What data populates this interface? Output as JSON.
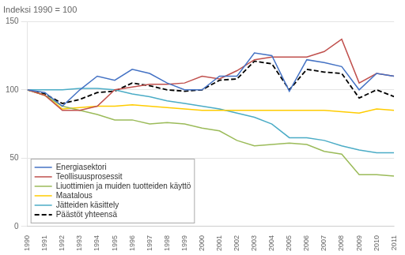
{
  "chart_data": {
    "type": "line",
    "ylabel": "Indeksi 1990 = 100",
    "x": [
      1990,
      1991,
      1992,
      1993,
      1994,
      1995,
      1996,
      1997,
      1998,
      1999,
      2000,
      2001,
      2002,
      2003,
      2004,
      2005,
      2006,
      2007,
      2008,
      2009,
      2010,
      2011
    ],
    "series": [
      {
        "name": "Energiasektori",
        "color": "#4472C4",
        "line_style": "solid",
        "values": [
          100,
          98,
          88,
          100,
          110,
          107,
          115,
          112,
          105,
          100,
          100,
          110,
          110,
          127,
          125,
          99,
          122,
          120,
          117,
          100,
          112,
          110
        ]
      },
      {
        "name": "Teollisuusprosessit",
        "color": "#C0504D",
        "line_style": "solid",
        "values": [
          100,
          96,
          85,
          85,
          88,
          100,
          102,
          104,
          104,
          105,
          110,
          108,
          114,
          122,
          124,
          124,
          124,
          128,
          137,
          105,
          112,
          110
        ]
      },
      {
        "name": "Liuottimien ja muiden tuotteiden käyttö",
        "color": "#9BBB59",
        "line_style": "solid",
        "values": [
          100,
          96,
          88,
          85,
          82,
          78,
          78,
          75,
          76,
          75,
          72,
          70,
          63,
          59,
          60,
          61,
          60,
          55,
          53,
          38,
          38,
          37
        ]
      },
      {
        "name": "Maatalous",
        "color": "#FFCC00",
        "line_style": "solid",
        "values": [
          100,
          96,
          86,
          87,
          88,
          88,
          89,
          88,
          87,
          86,
          85,
          85,
          85,
          85,
          85,
          85,
          85,
          85,
          84,
          83,
          86,
          85
        ]
      },
      {
        "name": "Jätteiden käsittely",
        "color": "#4BACC6",
        "line_style": "solid",
        "values": [
          100,
          100,
          100,
          101,
          101,
          100,
          97,
          95,
          92,
          90,
          88,
          86,
          83,
          80,
          75,
          65,
          65,
          63,
          59,
          56,
          54,
          54
        ]
      },
      {
        "name": "Päästöt yhteensä",
        "color": "#000000",
        "line_style": "dashed",
        "values": [
          100,
          97,
          90,
          93,
          98,
          99,
          105,
          103,
          100,
          99,
          100,
          107,
          108,
          121,
          119,
          100,
          115,
          113,
          112,
          94,
          100,
          95
        ]
      }
    ],
    "xlim": [
      1990,
      2011
    ],
    "xticks": [
      1990,
      1991,
      1992,
      1993,
      1994,
      1995,
      1996,
      1997,
      1998,
      1999,
      2000,
      2001,
      2002,
      2003,
      2004,
      2005,
      2006,
      2007,
      2008,
      2009,
      2010,
      2011
    ],
    "ylim": [
      0,
      150
    ],
    "yticks": [
      0,
      50,
      100,
      150
    ],
    "grid": "y",
    "legend": "lower left"
  }
}
